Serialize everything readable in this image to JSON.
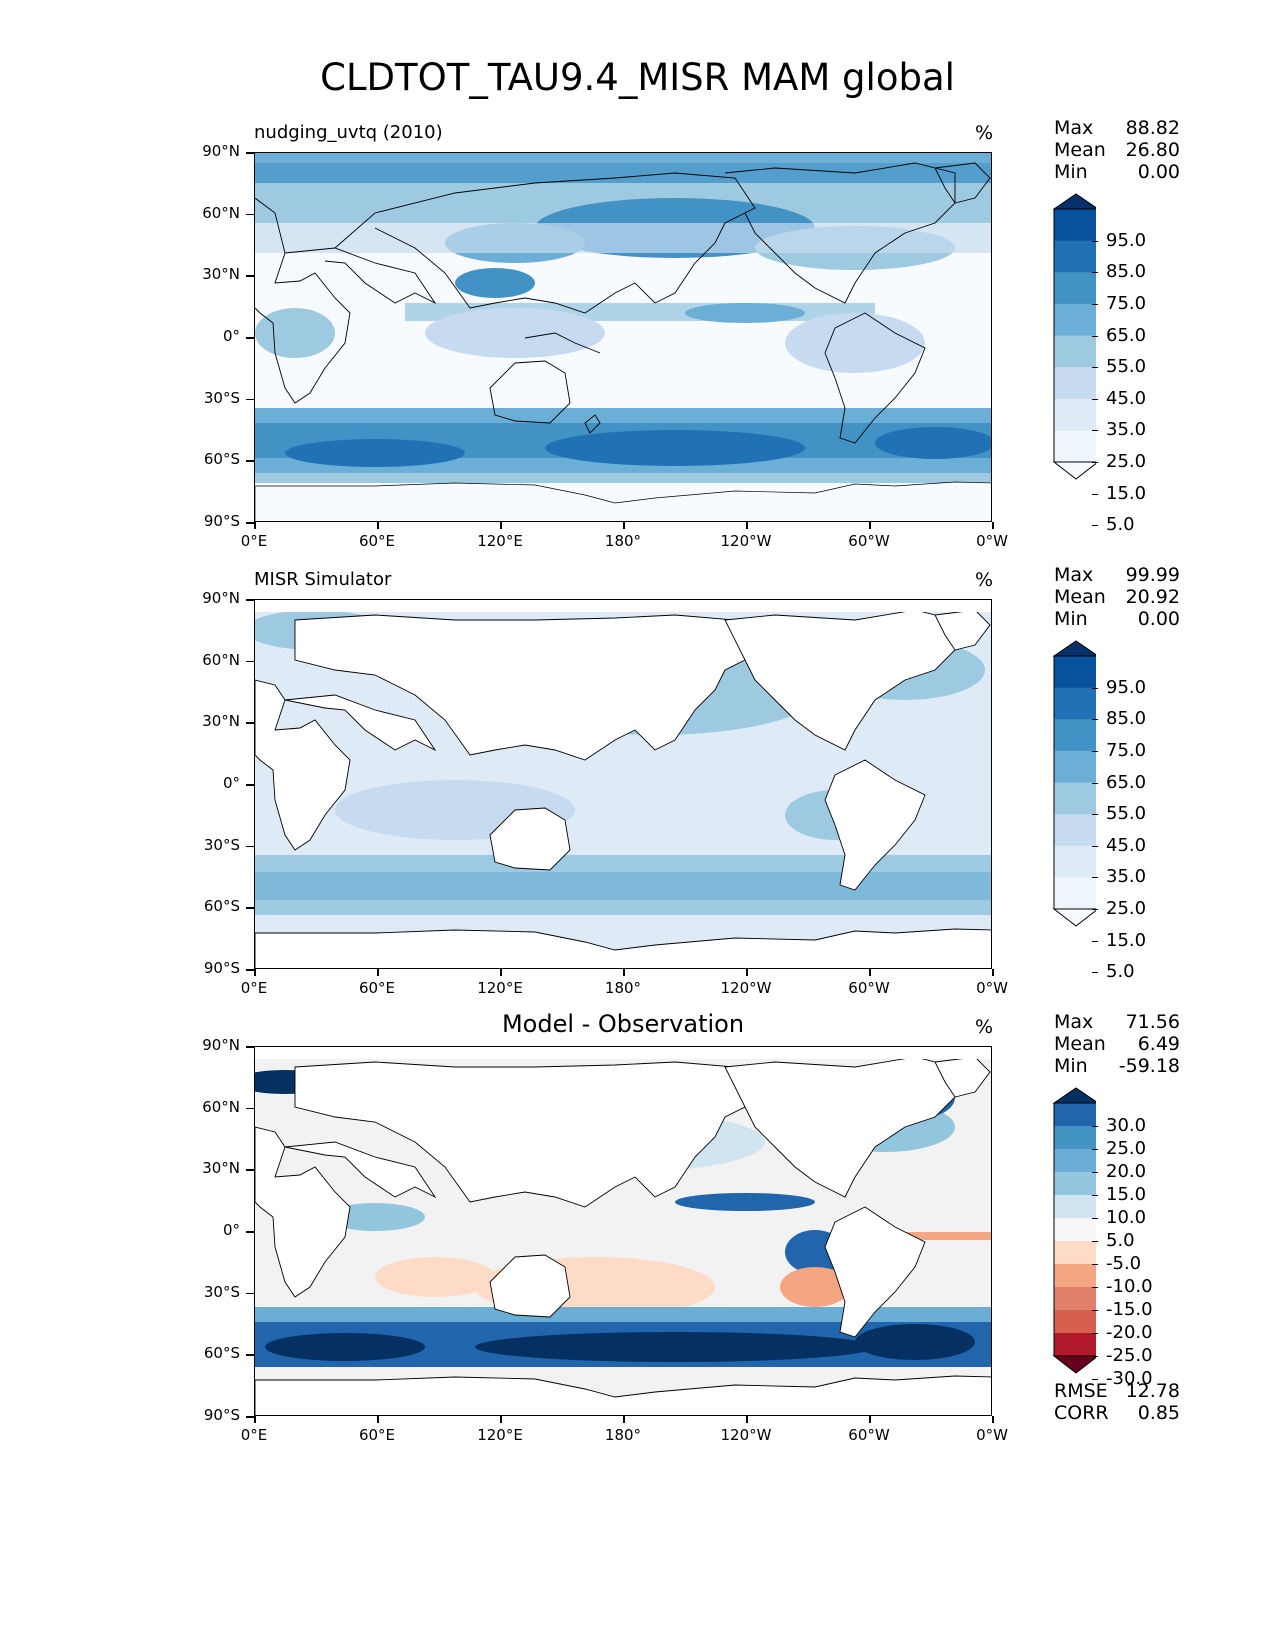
{
  "figure": {
    "title": "CLDTOT_TAU9.4_MISR MAM global"
  },
  "axes": {
    "yticks": [
      "90°N",
      "60°N",
      "30°N",
      "0°",
      "30°S",
      "60°S",
      "90°S"
    ],
    "xticks": [
      "0°E",
      "60°E",
      "120°E",
      "180°",
      "120°W",
      "60°W",
      "0°W"
    ]
  },
  "panels": [
    {
      "title": "nudging_uvtq (2010)",
      "unit": "%",
      "stats": [
        {
          "label": "Max",
          "value": "88.82"
        },
        {
          "label": "Mean",
          "value": "26.80"
        },
        {
          "label": "Min",
          "value": "0.00"
        }
      ]
    },
    {
      "title": "MISR Simulator",
      "unit": "%",
      "stats": [
        {
          "label": "Max",
          "value": "99.99"
        },
        {
          "label": "Mean",
          "value": "20.92"
        },
        {
          "label": "Min",
          "value": "0.00"
        }
      ]
    },
    {
      "title": "Model - Observation",
      "unit": "%",
      "stats": [
        {
          "label": "Max",
          "value": "71.56"
        },
        {
          "label": "Mean",
          "value": "6.49"
        },
        {
          "label": "Min",
          "value": "-59.18"
        }
      ],
      "extra_stats": [
        {
          "label": "RMSE",
          "value": "12.78"
        },
        {
          "label": "CORR",
          "value": "0.85"
        }
      ]
    }
  ],
  "colorbars": {
    "blues": {
      "labels": [
        "95.0",
        "85.0",
        "75.0",
        "65.0",
        "55.0",
        "45.0",
        "35.0",
        "25.0",
        "15.0",
        "5.0"
      ],
      "colors": [
        "#08306b",
        "#08519c",
        "#2171b5",
        "#4292c6",
        "#6baed6",
        "#9ecae1",
        "#c6dbef",
        "#deebf7",
        "#eef5fc",
        "#f7fbff"
      ]
    },
    "diverging": {
      "labels": [
        "30.0",
        "25.0",
        "20.0",
        "15.0",
        "10.0",
        "5.0",
        "-5.0",
        "-10.0",
        "-15.0",
        "-20.0",
        "-25.0",
        "-30.0"
      ],
      "colors": [
        "#053061",
        "#2166ac",
        "#4393c3",
        "#6aaed6",
        "#92c5de",
        "#d1e5f0",
        "#f7f7f7",
        "#fddbc7",
        "#f4a582",
        "#e0806a",
        "#d6604d",
        "#b2182b",
        "#67001f"
      ]
    }
  },
  "chart_data": [
    {
      "type": "heatmap",
      "title": "nudging_uvtq (2010)",
      "variable": "CLDTOT_TAU9.4_MISR",
      "season": "MAM",
      "unit": "%",
      "xticks": [
        "0°E",
        "60°E",
        "120°E",
        "180°",
        "120°W",
        "60°W",
        "0°W"
      ],
      "yticks": [
        "90°N",
        "60°N",
        "30°N",
        "0°",
        "30°S",
        "60°S",
        "90°S"
      ],
      "xlim": [
        0,
        360
      ],
      "ylim": [
        -90,
        90
      ],
      "levels": [
        5,
        15,
        25,
        35,
        45,
        55,
        65,
        75,
        85,
        95
      ],
      "max": 88.82,
      "mean": 26.8,
      "min": 0.0
    },
    {
      "type": "heatmap",
      "title": "MISR Simulator",
      "unit": "%",
      "xlim": [
        0,
        360
      ],
      "ylim": [
        -90,
        90
      ],
      "levels": [
        5,
        15,
        25,
        35,
        45,
        55,
        65,
        75,
        85,
        95
      ],
      "max": 99.99,
      "mean": 20.92,
      "min": 0.0
    },
    {
      "type": "heatmap",
      "title": "Model - Observation",
      "unit": "%",
      "xlim": [
        0,
        360
      ],
      "ylim": [
        -90,
        90
      ],
      "levels": [
        -30,
        -25,
        -20,
        -15,
        -10,
        -5,
        5,
        10,
        15,
        20,
        25,
        30
      ],
      "max": 71.56,
      "mean": 6.49,
      "min": -59.18,
      "rmse": 12.78,
      "corr": 0.85
    }
  ]
}
